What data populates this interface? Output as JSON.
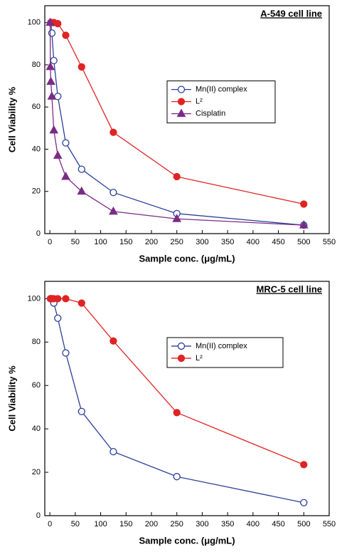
{
  "chart_data": [
    {
      "type": "line",
      "title": "A-549 cell line",
      "x_label": "Sample conc. (μg/mL)",
      "y_label": "Cell Viability %",
      "xlim": [
        -10,
        550
      ],
      "xticks": [
        0,
        50,
        100,
        150,
        200,
        250,
        300,
        350,
        400,
        450,
        500,
        550
      ],
      "ylim": [
        0,
        108
      ],
      "yticks": [
        0,
        20,
        40,
        60,
        80,
        100
      ],
      "legend": "center-right",
      "series": [
        {
          "name": "Mn(II) complex",
          "color": "#2a3f9a",
          "marker": "circle-open",
          "x": [
            1.95,
            3.9,
            7.8,
            15.6,
            31.25,
            62.5,
            125,
            250,
            500
          ],
          "values": [
            100,
            95,
            82,
            65,
            43,
            30.5,
            19.5,
            9.5,
            4
          ]
        },
        {
          "name": "L²",
          "color": "#e02424",
          "marker": "circle",
          "x": [
            1.95,
            3.9,
            7.8,
            15.6,
            31.25,
            62.5,
            125,
            250,
            500
          ],
          "values": [
            100,
            100,
            100,
            99.5,
            94,
            79,
            48,
            27,
            14
          ]
        },
        {
          "name": "Cisplatin",
          "color": "#7b2c86",
          "marker": "triangle",
          "x": [
            0.5,
            0.98,
            1.95,
            3.9,
            7.8,
            15.6,
            31.25,
            62.5,
            125,
            250,
            500
          ],
          "values": [
            100,
            79,
            72,
            65,
            49,
            37,
            27,
            20,
            10.5,
            7,
            4
          ]
        }
      ]
    },
    {
      "type": "line",
      "title": "MRC-5 cell line",
      "x_label": "Sample conc. (μg/mL)",
      "y_label": "Cell Viability %",
      "xlim": [
        -10,
        550
      ],
      "xticks": [
        0,
        50,
        100,
        150,
        200,
        250,
        300,
        350,
        400,
        450,
        500,
        550
      ],
      "ylim": [
        0,
        108
      ],
      "yticks": [
        0,
        20,
        40,
        60,
        80,
        100
      ],
      "legend": "center-right",
      "series": [
        {
          "name": "Mn(II) complex",
          "color": "#2a3f9a",
          "marker": "circle-open",
          "x": [
            1.95,
            3.9,
            7.8,
            15.6,
            31.25,
            62.5,
            125,
            250,
            500
          ],
          "values": [
            100,
            100,
            98,
            91,
            75,
            48,
            29.5,
            18,
            6
          ]
        },
        {
          "name": "L²",
          "color": "#e02424",
          "marker": "circle",
          "x": [
            0.98,
            1.95,
            3.9,
            7.8,
            15.6,
            31.25,
            62.5,
            125,
            250,
            500
          ],
          "values": [
            100,
            100,
            100,
            100,
            100,
            100,
            98,
            80.5,
            47.5,
            23.5
          ]
        }
      ]
    }
  ]
}
